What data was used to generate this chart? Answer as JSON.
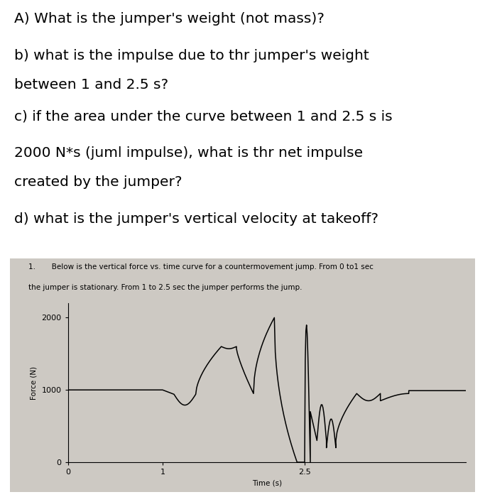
{
  "text_lines": [
    "A) What is the jumper's weight (not mass)?",
    "b) what is the impulse due to thr jumper's weight",
    "between 1 and 2.5 s?",
    "c) if the area under the curve between 1 and 2.5 s is",
    "2000 N*s (juml impulse), what is thr net impulse",
    "created by the jumper?",
    "d) what is the jumper's vertical velocity at takeoff?"
  ],
  "graph_note_line1": "1.       Below is the vertical force vs. time curve for a countermovement jump. From 0 to1 sec",
  "graph_note_line2": "the jumper is stationary. From 1 to 2.5 sec the jumper performs the jump.",
  "ylabel": "Force (N)",
  "xlabel": "Time (s)",
  "yticks": [
    0,
    1000,
    2000
  ],
  "xtick_vals": [
    0,
    1,
    2.5
  ],
  "xtick_labels": [
    "0",
    "1",
    "2.5"
  ],
  "ylim": [
    0,
    2200
  ],
  "xlim": [
    0,
    4.2
  ],
  "bg_color": "#cdc9c3",
  "text_fontsize": 14.5,
  "note_fontsize": 7.5,
  "axis_label_fontsize": 7.5,
  "tick_fontsize": 8
}
